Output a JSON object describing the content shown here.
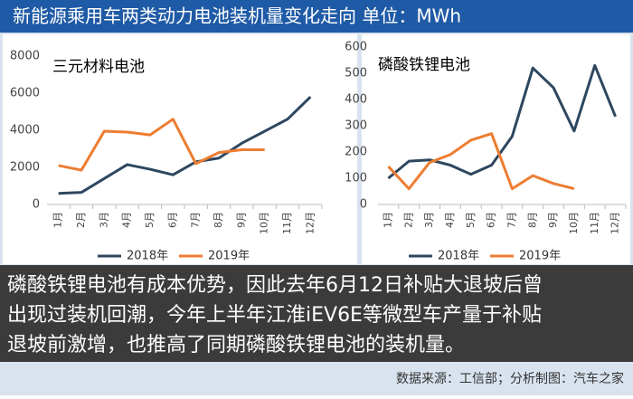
{
  "header": {
    "title": "新能源乘用车两类动力电池装机量变化走向  单位：MWh"
  },
  "chart_data": [
    {
      "type": "line",
      "title": "三元材料电池",
      "categories": [
        "1月",
        "2月",
        "3月",
        "4月",
        "5月",
        "6月",
        "7月",
        "8月",
        "9月",
        "10月",
        "11月",
        "12月"
      ],
      "series": [
        {
          "name": "2018年",
          "color": "#2e4760",
          "values": [
            600,
            650,
            1400,
            2150,
            1900,
            1600,
            2300,
            2500,
            3300,
            3950,
            4600,
            5800
          ]
        },
        {
          "name": "2019年",
          "color": "#ed7d31",
          "values": [
            2100,
            1850,
            3950,
            3900,
            3750,
            4600,
            2200,
            2800,
            2950,
            2950,
            null,
            null
          ]
        }
      ],
      "ylim": [
        0,
        8000
      ],
      "yticks": [
        0,
        2000,
        4000,
        6000,
        8000
      ],
      "grid": false
    },
    {
      "type": "line",
      "title": "磷酸铁锂电池",
      "categories": [
        "1月",
        "2月",
        "3月",
        "4月",
        "5月",
        "6月",
        "7月",
        "8月",
        "9月",
        "10月",
        "11月",
        "12月"
      ],
      "series": [
        {
          "name": "2018年",
          "color": "#2e4760",
          "values": [
            100,
            165,
            170,
            150,
            115,
            150,
            260,
            520,
            445,
            280,
            530,
            335
          ]
        },
        {
          "name": "2019年",
          "color": "#ed7d31",
          "values": [
            145,
            60,
            160,
            190,
            245,
            270,
            60,
            110,
            80,
            60,
            null,
            null
          ]
        }
      ],
      "ylim": [
        0,
        600
      ],
      "yticks": [
        0,
        100,
        200,
        300,
        400,
        500,
        600
      ],
      "grid": false
    }
  ],
  "caption": [
    "磷酸铁锂电池有成本优势，因此去年6月12日补贴大退坡后曾",
    "出现过装机回潮，今年上半年江淮iEV6E等微型车产量于补贴",
    "退坡前激增，也推高了同期磷酸铁锂电池的装机量。"
  ],
  "source": "数据来源：工信部；分析制图：汽车之家"
}
